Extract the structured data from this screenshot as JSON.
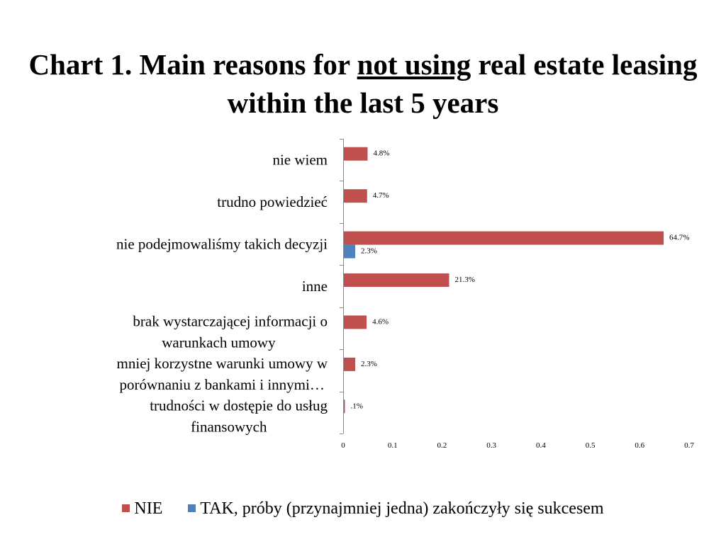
{
  "title": {
    "part1": "Chart 1. Main reasons for ",
    "emph": "not using",
    "part2": " real estate leasing within the last 5 years"
  },
  "chart_data": {
    "type": "bar",
    "orientation": "horizontal",
    "categories": [
      [
        "nie wiem"
      ],
      [
        "trudno powiedzieć"
      ],
      [
        "nie podejmowaliśmy takich decyzji"
      ],
      [
        "inne"
      ],
      [
        "brak wystarczającej informacji o",
        "warunkach umowy"
      ],
      [
        "mniej korzystne warunki umowy w",
        "porównaniu z bankami i innymi…"
      ],
      [
        "trudności w dostępie do usług",
        "finansowych"
      ]
    ],
    "series": [
      {
        "name": "NIE",
        "color": "#c0504d",
        "values": [
          0.048,
          0.047,
          0.647,
          0.213,
          0.046,
          0.023,
          0.001
        ],
        "labels": [
          "4.8%",
          "4.7%",
          "64.7%",
          "21.3%",
          "4.6%",
          "2.3%",
          ".1%"
        ]
      },
      {
        "name": "TAK, próby (przynajmniej jedna) zakończyły się sukcesem",
        "color": "#4f81bd",
        "values": [
          null,
          null,
          0.023,
          null,
          null,
          null,
          null
        ],
        "labels": [
          null,
          null,
          "2.3%",
          null,
          null,
          null,
          null
        ]
      }
    ],
    "xlim": [
      0,
      0.7
    ],
    "xticks": [
      "0",
      "0.1",
      "0.2",
      "0.3",
      "0.4",
      "0.5",
      "0.6",
      "0.7"
    ],
    "grid": false,
    "legend": "bottom"
  }
}
